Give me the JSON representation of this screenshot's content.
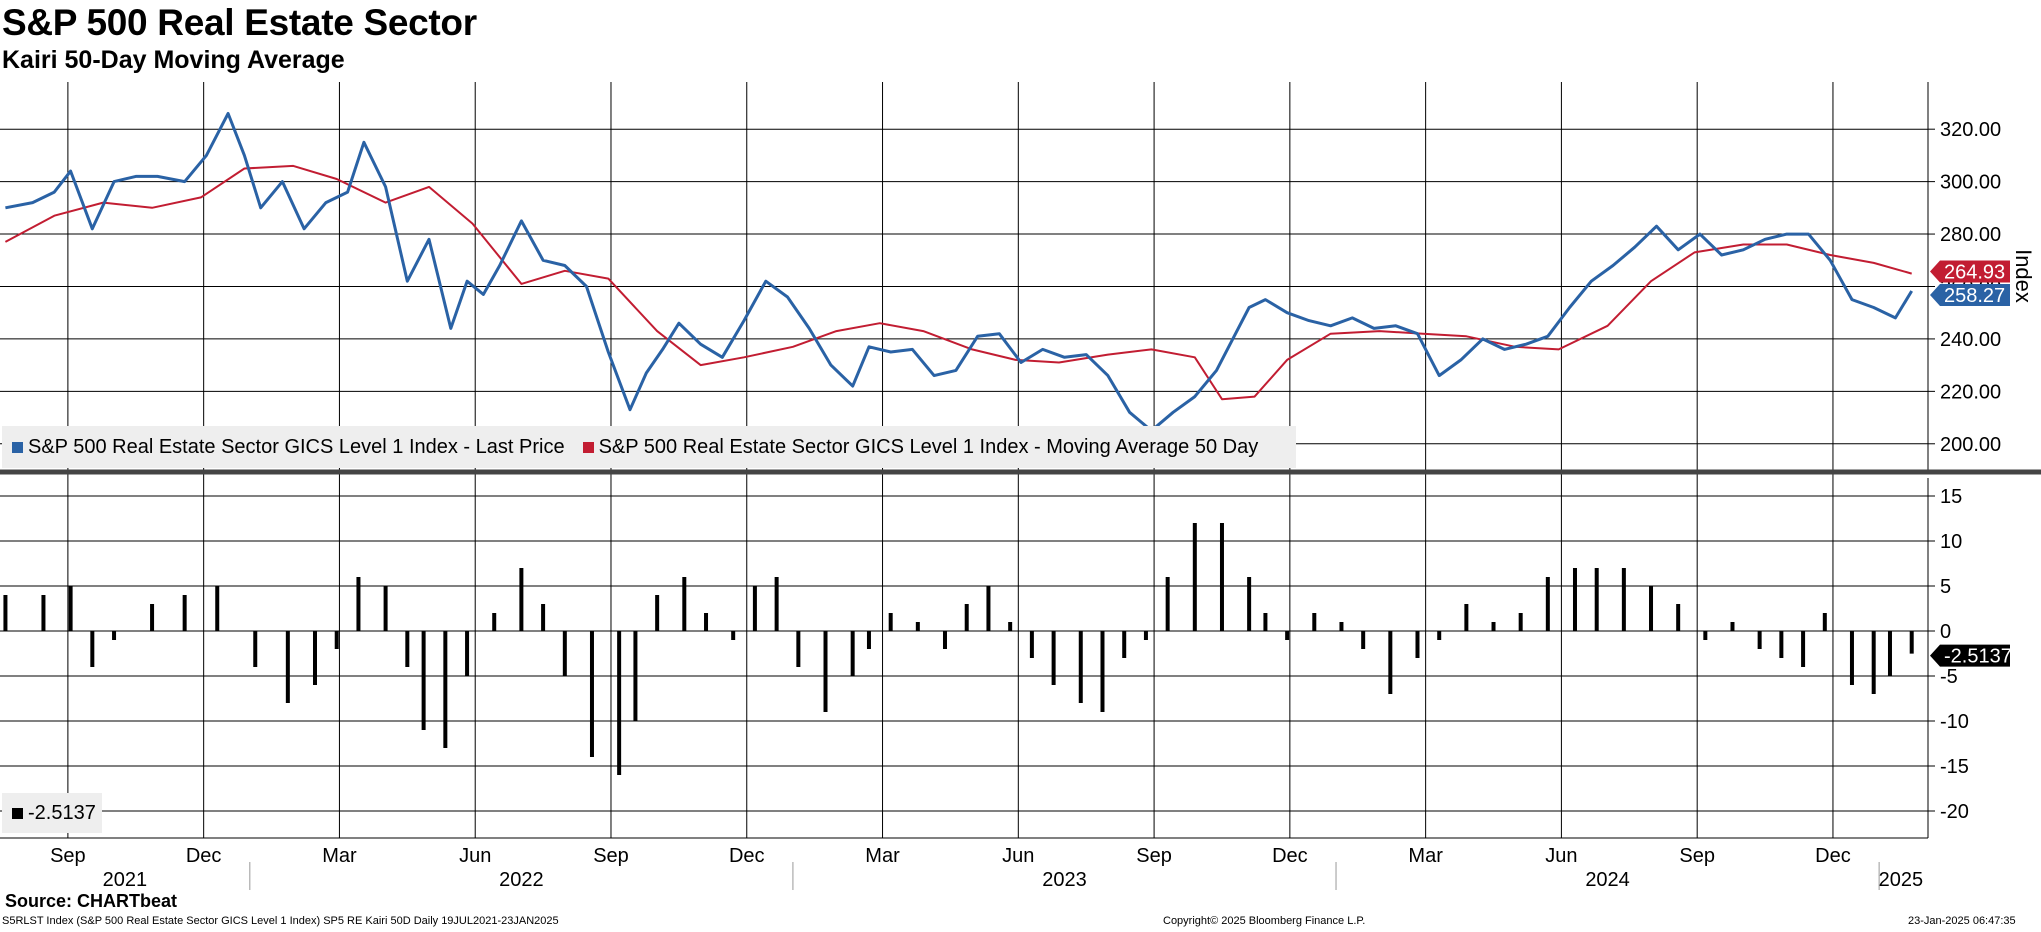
{
  "title": "S&P 500 Real Estate Sector",
  "subtitle": "Kairi 50-Day Moving Average",
  "legend": {
    "last_price": "S&P 500 Real Estate Sector GICS Level 1 Index - Last Price",
    "moving_average": "S&P 500 Real Estate Sector GICS Level 1 Index - Moving Average 50 Day"
  },
  "lower_legend": "-2.5137",
  "source": "Source: CHARTbeat",
  "footer": {
    "description": "S5RLST Index (S&P 500 Real Estate Sector GICS Level 1 Index) SP5 RE Kairi 50D  Daily 19JUL2021-23JAN2025",
    "copyright": "Copyright© 2025 Bloomberg Finance L.P.",
    "timestamp": "23-Jan-2025 06:47:35"
  },
  "colors": {
    "price": "#2a62a5",
    "ma": "#c21d32",
    "kairi": "#000000",
    "grid": "#000000"
  },
  "chart_data": [
    {
      "type": "line",
      "title": "S&P 500 Real Estate Sector",
      "ylabel": "Index",
      "ylim": [
        190,
        338
      ],
      "yticks": [
        "320.00",
        "300.00",
        "280.00",
        "260.00",
        "240.00",
        "220.00",
        "200.00"
      ],
      "ytick_values": [
        320,
        300,
        280,
        260,
        240,
        220,
        200
      ],
      "x_range": [
        2021.54,
        2025.09
      ],
      "series": [
        {
          "name": "S&P 500 Real Estate Sector GICS Level 1 Index - Last Price",
          "last_value": "258.27",
          "x": [
            2021.55,
            2021.6,
            2021.64,
            2021.67,
            2021.71,
            2021.75,
            2021.79,
            2021.83,
            2021.88,
            2021.92,
            2021.96,
            2021.99,
            2022.02,
            2022.06,
            2022.1,
            2022.14,
            2022.18,
            2022.21,
            2022.25,
            2022.29,
            2022.33,
            2022.37,
            2022.4,
            2022.43,
            2022.46,
            2022.5,
            2022.54,
            2022.58,
            2022.62,
            2022.66,
            2022.7,
            2022.73,
            2022.76,
            2022.79,
            2022.83,
            2022.87,
            2022.91,
            2022.95,
            2022.99,
            2023.03,
            2023.07,
            2023.11,
            2023.14,
            2023.18,
            2023.22,
            2023.26,
            2023.3,
            2023.34,
            2023.38,
            2023.42,
            2023.46,
            2023.5,
            2023.54,
            2023.58,
            2023.62,
            2023.66,
            2023.7,
            2023.74,
            2023.78,
            2023.81,
            2023.84,
            2023.87,
            2023.91,
            2023.95,
            2023.99,
            2024.03,
            2024.07,
            2024.11,
            2024.15,
            2024.19,
            2024.23,
            2024.27,
            2024.31,
            2024.35,
            2024.39,
            2024.43,
            2024.47,
            2024.51,
            2024.55,
            2024.59,
            2024.63,
            2024.67,
            2024.71,
            2024.75,
            2024.79,
            2024.83,
            2024.87,
            2024.91,
            2024.95,
            2024.99,
            2025.03,
            2025.06
          ],
          "values": [
            290,
            292,
            296,
            304,
            282,
            300,
            302,
            302,
            300,
            310,
            326,
            310,
            290,
            300,
            282,
            292,
            296,
            315,
            298,
            262,
            278,
            244,
            262,
            257,
            268,
            285,
            270,
            268,
            260,
            235,
            213,
            227,
            236,
            246,
            238,
            233,
            247,
            262,
            256,
            244,
            230,
            222,
            237,
            235,
            236,
            226,
            228,
            241,
            242,
            231,
            236,
            233,
            234,
            226,
            212,
            205,
            212,
            218,
            228,
            240,
            252,
            255,
            250,
            247,
            245,
            248,
            244,
            245,
            242,
            226,
            232,
            240,
            236,
            238,
            241,
            252,
            262,
            268,
            275,
            283,
            274,
            280,
            272,
            274,
            278,
            280,
            280,
            270,
            255,
            252,
            248,
            258.27
          ]
        },
        {
          "name": "S&P 500 Real Estate Sector GICS Level 1 Index - Moving Average 50 Day",
          "last_value": "264.93",
          "x": [
            2021.55,
            2021.64,
            2021.73,
            2021.82,
            2021.91,
            2021.99,
            2022.08,
            2022.16,
            2022.25,
            2022.33,
            2022.41,
            2022.5,
            2022.58,
            2022.66,
            2022.75,
            2022.83,
            2022.91,
            2023.0,
            2023.08,
            2023.16,
            2023.24,
            2023.33,
            2023.41,
            2023.49,
            2023.58,
            2023.66,
            2023.74,
            2023.79,
            2023.85,
            2023.91,
            2023.99,
            2024.08,
            2024.16,
            2024.24,
            2024.33,
            2024.41,
            2024.5,
            2024.58,
            2024.66,
            2024.75,
            2024.83,
            2024.91,
            2024.99,
            2025.06
          ],
          "values": [
            277,
            287,
            292,
            290,
            294,
            305,
            306,
            301,
            292,
            298,
            284,
            261,
            266,
            263,
            243,
            230,
            233,
            237,
            243,
            246,
            243,
            236,
            232,
            231,
            234,
            236,
            233,
            217,
            218,
            232,
            242,
            243,
            242,
            241,
            237,
            236,
            245,
            262,
            273,
            276,
            276,
            272,
            269,
            264.93
          ]
        }
      ]
    },
    {
      "type": "bar",
      "title": "Kairi 50-Day Moving Average",
      "ylim": [
        -23,
        17
      ],
      "yticks": [
        "15",
        "10",
        "5",
        "0",
        "-5",
        "-10",
        "-15",
        "-20"
      ],
      "ytick_values": [
        15,
        10,
        5,
        0,
        -5,
        -10,
        -15,
        -20
      ],
      "last_value": "-2.5137",
      "x": [
        2021.55,
        2021.62,
        2021.67,
        2021.71,
        2021.75,
        2021.82,
        2021.88,
        2021.94,
        2022.01,
        2022.07,
        2022.12,
        2022.16,
        2022.2,
        2022.25,
        2022.29,
        2022.32,
        2022.36,
        2022.4,
        2022.45,
        2022.5,
        2022.54,
        2022.58,
        2022.63,
        2022.68,
        2022.71,
        2022.75,
        2022.8,
        2022.84,
        2022.89,
        2022.93,
        2022.97,
        2023.01,
        2023.06,
        2023.11,
        2023.14,
        2023.18,
        2023.23,
        2023.28,
        2023.32,
        2023.36,
        2023.4,
        2023.44,
        2023.48,
        2023.53,
        2023.57,
        2023.61,
        2023.65,
        2023.69,
        2023.74,
        2023.79,
        2023.84,
        2023.87,
        2023.91,
        2023.96,
        2024.01,
        2024.05,
        2024.1,
        2024.15,
        2024.19,
        2024.24,
        2024.29,
        2024.34,
        2024.39,
        2024.44,
        2024.48,
        2024.53,
        2024.58,
        2024.63,
        2024.68,
        2024.73,
        2024.78,
        2024.82,
        2024.86,
        2024.9,
        2024.95,
        2024.99,
        2025.02,
        2025.06
      ],
      "values": [
        4,
        4,
        5,
        -4,
        -1,
        3,
        4,
        5,
        -4,
        -8,
        -6,
        -2,
        6,
        5,
        -4,
        -11,
        -13,
        -5,
        2,
        7,
        3,
        -5,
        -14,
        -16,
        -10,
        4,
        6,
        2,
        -1,
        5,
        6,
        -4,
        -9,
        -5,
        -2,
        2,
        1,
        -2,
        3,
        5,
        1,
        -3,
        -6,
        -8,
        -9,
        -3,
        -1,
        6,
        12,
        12,
        6,
        2,
        -1,
        2,
        1,
        -2,
        -7,
        -3,
        -1,
        3,
        1,
        2,
        6,
        7,
        7,
        7,
        5,
        3,
        -1,
        1,
        -2,
        -3,
        -4,
        2,
        -6,
        -7,
        -5,
        -2.5137
      ]
    }
  ],
  "x_axis": {
    "months": [
      {
        "label": "Sep",
        "x": 2021.665
      },
      {
        "label": "Dec",
        "x": 2021.915
      },
      {
        "label": "Mar",
        "x": 2022.165
      },
      {
        "label": "Jun",
        "x": 2022.415
      },
      {
        "label": "Sep",
        "x": 2022.665
      },
      {
        "label": "Dec",
        "x": 2022.915
      },
      {
        "label": "Mar",
        "x": 2023.165
      },
      {
        "label": "Jun",
        "x": 2023.415
      },
      {
        "label": "Sep",
        "x": 2023.665
      },
      {
        "label": "Dec",
        "x": 2023.915
      },
      {
        "label": "Mar",
        "x": 2024.165
      },
      {
        "label": "Jun",
        "x": 2024.415
      },
      {
        "label": "Sep",
        "x": 2024.665
      },
      {
        "label": "Dec",
        "x": 2024.915
      }
    ],
    "years": [
      {
        "label": "2021",
        "x": 2021.77
      },
      {
        "label": "2022",
        "x": 2022.5
      },
      {
        "label": "2023",
        "x": 2023.5
      },
      {
        "label": "2024",
        "x": 2024.5
      },
      {
        "label": "2025",
        "x": 2025.04
      }
    ],
    "year_boundaries": [
      2022.0,
      2023.0,
      2024.0,
      2025.0
    ]
  }
}
